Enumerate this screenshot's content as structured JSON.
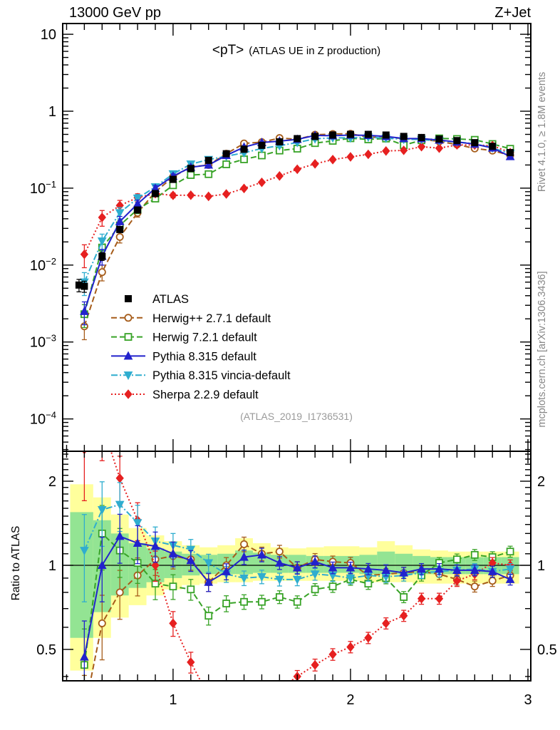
{
  "header": {
    "left": "13000 GeV pp",
    "right": "Z+Jet"
  },
  "title": {
    "main": "<pT>",
    "sub": "(ATLAS UE in Z production)"
  },
  "watermark": "(ATLAS_2019_I1736531)",
  "side_notes": {
    "top": "Rivet 4.1.0, ≥ 1.8M events",
    "bottom": "mcplots.cern.ch [arXiv:1306.3436]"
  },
  "ratio_ylabel": "Ratio to ATLAS",
  "legend": {
    "entries": [
      {
        "series": "atlas",
        "label": "ATLAS"
      },
      {
        "series": "herwigpp",
        "label": "Herwig++ 2.7.1 default"
      },
      {
        "series": "herwig7",
        "label": "Herwig 7.2.1 default"
      },
      {
        "series": "pythia",
        "label": "Pythia 8.315 default"
      },
      {
        "series": "vincia",
        "label": "Pythia 8.315 vincia-default"
      },
      {
        "series": "sherpa",
        "label": "Sherpa 2.2.9 default"
      }
    ]
  },
  "chart_data": {
    "type": "line",
    "title": "<pT> (ATLAS UE in Z production)",
    "x_axis": {
      "min": 0.378,
      "max": 3.016,
      "scale": "linear",
      "major_ticks": [
        1,
        2,
        3
      ],
      "minor_start": 0.4,
      "minor_step": 0.1
    },
    "main_axis": {
      "min": 3.8e-05,
      "max": 13.8,
      "scale": "log",
      "tick_values": [
        10,
        1,
        0.1,
        0.01,
        0.001,
        0.0001
      ],
      "tick_labels": [
        {
          "b": "10",
          "e": ""
        },
        {
          "b": "1",
          "e": ""
        },
        {
          "b": "10",
          "e": "−1"
        },
        {
          "b": "10",
          "e": "−2"
        },
        {
          "b": "10",
          "e": "−3"
        },
        {
          "b": "10",
          "e": "−4"
        }
      ]
    },
    "ratio_axis": {
      "min": 0.386,
      "max": 2.56,
      "scale": "log",
      "major_ticks": [
        2,
        1,
        0.5
      ],
      "major_labels": [
        "2",
        "1",
        "0.5"
      ],
      "minor_ticks": [
        0.4,
        0.6,
        0.7,
        0.8,
        0.9,
        1.1,
        1.2,
        1.3,
        1.4,
        1.5,
        1.6,
        1.7,
        1.8,
        1.9,
        2.1,
        2.2,
        2.3,
        2.4,
        2.5
      ]
    },
    "x": [
      0.5,
      0.6,
      0.7,
      0.8,
      0.9,
      1.0,
      1.1,
      1.2,
      1.3,
      1.4,
      1.5,
      1.6,
      1.7,
      1.8,
      1.9,
      2.0,
      2.1,
      2.2,
      2.3,
      2.4,
      2.5,
      2.6,
      2.7,
      2.8,
      2.9
    ],
    "series": [
      {
        "key": "atlas",
        "label": "ATLAS",
        "color": "#000000",
        "marker": "fsquare",
        "line": "none",
        "values": [
          0.0053,
          0.013,
          0.029,
          0.052,
          0.085,
          0.13,
          0.18,
          0.23,
          0.28,
          0.32,
          0.36,
          0.4,
          0.44,
          0.47,
          0.49,
          0.5,
          0.5,
          0.49,
          0.47,
          0.455,
          0.435,
          0.415,
          0.39,
          0.35,
          0.29
        ],
        "extra_points": [
          {
            "x": 0.47,
            "value": 0.0055
          }
        ],
        "ratio": null
      },
      {
        "key": "herwigpp",
        "label": "Herwig++ 2.7.1 default",
        "color": "#a65c1a",
        "marker": "ocircle",
        "line": "dash",
        "values": [
          0.0016,
          0.0081,
          0.0232,
          0.0478,
          0.0893,
          0.14,
          0.189,
          0.2,
          0.28,
          0.381,
          0.396,
          0.448,
          0.431,
          0.494,
          0.505,
          0.51,
          0.46,
          0.456,
          0.442,
          0.432,
          0.405,
          0.369,
          0.328,
          0.308,
          0.267
        ],
        "ratio": [
          0.3,
          0.62,
          0.8,
          0.92,
          1.05,
          1.08,
          1.05,
          0.87,
          1.0,
          1.19,
          1.1,
          1.12,
          0.98,
          1.05,
          1.03,
          1.02,
          0.92,
          0.93,
          0.94,
          0.95,
          0.93,
          0.89,
          0.84,
          0.88,
          0.92
        ]
      },
      {
        "key": "herwig7",
        "label": "Herwig 7.2.1 default",
        "color": "#38a327",
        "marker": "osquare",
        "line": "dash",
        "values": [
          0.0023,
          0.0169,
          0.0328,
          0.053,
          0.0731,
          0.109,
          0.148,
          0.152,
          0.204,
          0.237,
          0.266,
          0.308,
          0.326,
          0.385,
          0.412,
          0.445,
          0.43,
          0.441,
          0.362,
          0.419,
          0.444,
          0.436,
          0.425,
          0.375,
          0.325
        ],
        "ratio": [
          0.44,
          1.3,
          1.13,
          1.02,
          0.86,
          0.84,
          0.82,
          0.66,
          0.73,
          0.74,
          0.74,
          0.77,
          0.74,
          0.82,
          0.84,
          0.89,
          0.86,
          0.9,
          0.77,
          0.92,
          1.02,
          1.05,
          1.09,
          1.07,
          1.12
        ]
      },
      {
        "key": "pythia",
        "label": "Pythia 8.315 default",
        "color": "#2222cc",
        "marker": "ftriup",
        "line": "solid",
        "values": [
          0.0025,
          0.013,
          0.0368,
          0.0624,
          0.0995,
          0.143,
          0.187,
          0.2,
          0.266,
          0.342,
          0.392,
          0.408,
          0.431,
          0.484,
          0.48,
          0.49,
          0.485,
          0.47,
          0.442,
          0.441,
          0.422,
          0.398,
          0.374,
          0.333,
          0.258
        ],
        "ratio": [
          0.47,
          1.0,
          1.27,
          1.2,
          1.17,
          1.1,
          1.04,
          0.87,
          0.95,
          1.07,
          1.09,
          1.02,
          0.98,
          1.03,
          0.98,
          0.98,
          0.97,
          0.96,
          0.94,
          0.97,
          0.97,
          0.96,
          0.96,
          0.95,
          0.89
        ]
      },
      {
        "key": "vincia",
        "label": "Pythia 8.315 vincia-default",
        "color": "#2fadcf",
        "marker": "ftridown",
        "line": "dashdot",
        "values": [
          0.006,
          0.0205,
          0.0479,
          0.0738,
          0.1037,
          0.153,
          0.205,
          0.235,
          0.26,
          0.288,
          0.328,
          0.356,
          0.392,
          0.437,
          0.451,
          0.45,
          0.46,
          0.446,
          0.432,
          0.428,
          0.413,
          0.398,
          0.378,
          0.333,
          0.281
        ],
        "ratio": [
          1.13,
          1.58,
          1.65,
          1.42,
          1.22,
          1.18,
          1.14,
          1.02,
          0.93,
          0.9,
          0.91,
          0.89,
          0.89,
          0.93,
          0.92,
          0.9,
          0.92,
          0.91,
          0.92,
          0.94,
          0.95,
          0.96,
          0.97,
          0.95,
          0.97
        ]
      },
      {
        "key": "sherpa",
        "label": "Sherpa 2.2.9 default",
        "color": "#e62020",
        "marker": "fdiamond",
        "line": "dot",
        "values": [
          0.0138,
          0.0416,
          0.0595,
          0.0754,
          0.085,
          0.0806,
          0.081,
          0.0782,
          0.084,
          0.0992,
          0.119,
          0.144,
          0.176,
          0.207,
          0.235,
          0.255,
          0.275,
          0.304,
          0.31,
          0.346,
          0.331,
          0.365,
          0.363,
          0.357,
          0.29
        ],
        "ratio": [
          2.6,
          3.2,
          2.05,
          1.45,
          1.0,
          0.62,
          0.45,
          0.34,
          0.3,
          0.31,
          0.33,
          0.36,
          0.4,
          0.44,
          0.48,
          0.51,
          0.55,
          0.62,
          0.66,
          0.76,
          0.76,
          0.88,
          0.93,
          1.02,
          1.0
        ]
      }
    ],
    "bands": {
      "bin_halfwidth": 0.05,
      "x_start": 0.42,
      "yellow_color": "#ffff9c",
      "green_color": "#93e493",
      "yellow_lo": [
        0.42,
        0.55,
        0.65,
        0.72,
        0.78,
        0.82,
        0.85,
        0.86,
        0.87,
        0.87,
        0.88,
        0.88,
        0.88,
        0.88,
        0.88,
        0.88,
        0.87,
        0.87,
        0.87,
        0.86,
        0.86,
        0.86,
        0.86,
        0.86,
        0.86
      ],
      "yellow_hi": [
        1.95,
        1.75,
        1.52,
        1.36,
        1.28,
        1.22,
        1.18,
        1.16,
        1.18,
        1.25,
        1.2,
        1.16,
        1.15,
        1.16,
        1.17,
        1.17,
        1.16,
        1.22,
        1.18,
        1.14,
        1.13,
        1.12,
        1.12,
        1.12,
        1.12
      ],
      "green_lo": [
        0.55,
        0.68,
        0.78,
        0.83,
        0.87,
        0.9,
        0.92,
        0.93,
        0.93,
        0.93,
        0.94,
        0.94,
        0.94,
        0.94,
        0.94,
        0.94,
        0.93,
        0.93,
        0.93,
        0.93,
        0.93,
        0.93,
        0.93,
        0.93,
        0.93
      ],
      "green_hi": [
        1.55,
        1.45,
        1.3,
        1.2,
        1.15,
        1.12,
        1.1,
        1.09,
        1.1,
        1.13,
        1.11,
        1.09,
        1.09,
        1.08,
        1.08,
        1.08,
        1.09,
        1.12,
        1.1,
        1.08,
        1.07,
        1.07,
        1.07,
        1.07,
        1.07
      ]
    },
    "style": {
      "main_err_start": 0.3,
      "main_err_decay": 0.25,
      "main_err_floor": 0.03,
      "ratio_err_start": 0.3,
      "ratio_err_decay": 0.3,
      "ratio_err_floor": 0.045
    }
  }
}
